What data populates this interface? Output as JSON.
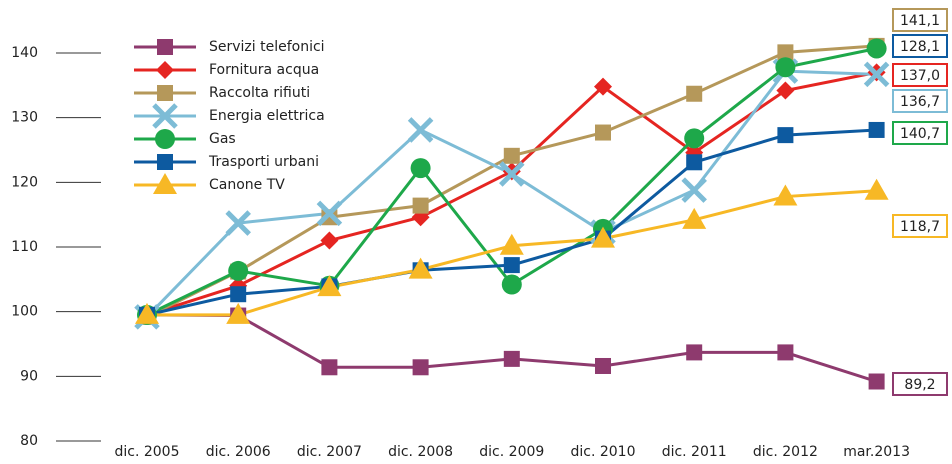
{
  "chart_data": {
    "type": "line",
    "categories": [
      "dic. 2005",
      "dic. 2006",
      "dic. 2007",
      "dic. 2008",
      "dic. 2009",
      "dic. 2010",
      "dic. 2011",
      "dic. 2012",
      "mar.2013"
    ],
    "ylim": [
      80,
      140
    ],
    "yticks": [
      80,
      90,
      100,
      110,
      120,
      130,
      140
    ],
    "series": [
      {
        "name": "Servizi telefonici",
        "color": "#8e3a6e",
        "marker": "square",
        "values": [
          99.5,
          99.4,
          91.4,
          91.4,
          92.7,
          91.6,
          93.7,
          93.7,
          89.2
        ],
        "value_labels": [
          null,
          null,
          null,
          null,
          null,
          null,
          null,
          null,
          "89,2"
        ]
      },
      {
        "name": "Fornitura acqua",
        "color": "#e52521",
        "marker": "diamond",
        "values": [
          99.5,
          104.0,
          111.0,
          114.6,
          121.7,
          134.8,
          124.6,
          134.2,
          137.0
        ],
        "value_labels": [
          null,
          null,
          null,
          null,
          null,
          null,
          null,
          null,
          "137,0"
        ]
      },
      {
        "name": "Raccolta rifiuti",
        "color": "#b5985a",
        "marker": "square",
        "values": [
          99.2,
          106.2,
          114.6,
          116.4,
          124.1,
          127.7,
          133.7,
          140.1,
          141.1
        ],
        "value_labels": [
          null,
          null,
          null,
          null,
          null,
          null,
          null,
          null,
          "141,1"
        ]
      },
      {
        "name": "Energia elettrica",
        "color": "#7dbcd6",
        "marker": "x",
        "values": [
          99.2,
          113.7,
          115.2,
          128.1,
          121.3,
          112.3,
          118.8,
          137.2,
          136.7
        ],
        "value_labels": [
          null,
          null,
          null,
          null,
          null,
          null,
          null,
          null,
          "136,7"
        ]
      },
      {
        "name": "Gas",
        "color": "#1ea84a",
        "marker": "circle",
        "values": [
          99.5,
          106.3,
          104.0,
          122.2,
          104.2,
          112.8,
          126.8,
          137.8,
          140.7
        ],
        "value_labels": [
          null,
          null,
          null,
          null,
          null,
          null,
          null,
          null,
          "140,7"
        ]
      },
      {
        "name": "Trasporti urbani",
        "color": "#0d5aa0",
        "marker": "square",
        "values": [
          99.5,
          102.7,
          103.9,
          106.4,
          107.2,
          111.3,
          123.1,
          127.3,
          128.1
        ],
        "value_labels": [
          null,
          null,
          null,
          null,
          null,
          null,
          null,
          null,
          "128,1"
        ]
      },
      {
        "name": "Canone TV",
        "color": "#f7b825",
        "marker": "triangle",
        "values": [
          99.5,
          99.5,
          103.8,
          106.5,
          110.2,
          111.3,
          114.2,
          117.8,
          118.7
        ],
        "value_labels": [
          null,
          null,
          null,
          null,
          null,
          null,
          null,
          null,
          "118,7"
        ]
      }
    ]
  }
}
